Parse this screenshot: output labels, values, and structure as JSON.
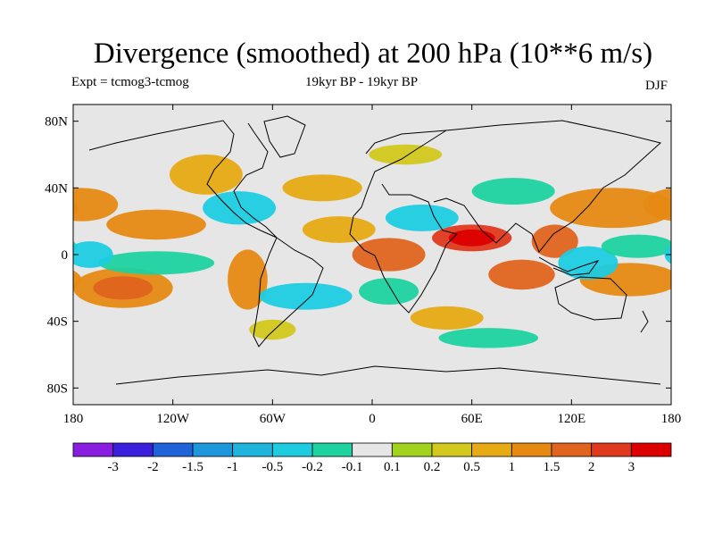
{
  "title": "Divergence (smoothed) at 200 hPa (10**6 m/s)",
  "experiment": "Expt = tcmog3-tcmog",
  "period": "19kyr BP - 19kyr BP",
  "season": "DJF",
  "chart_data": {
    "type": "heatmap",
    "variable": "Divergence (smoothed) at 200 hPa",
    "units": "10**6 m/s",
    "lat_ticks": [
      "80N",
      "40N",
      "0",
      "40S",
      "80S"
    ],
    "lat_values": [
      80,
      40,
      0,
      -40,
      -80
    ],
    "lon_ticks": [
      "180",
      "120W",
      "60W",
      "0",
      "60E",
      "120E",
      "180"
    ],
    "lon_values": [
      -180,
      -120,
      -60,
      0,
      60,
      120,
      180
    ],
    "lat_range": [
      -90,
      90
    ],
    "lon_range": [
      -180,
      180
    ],
    "colorbar": {
      "labels": [
        "-3",
        "-2",
        "-1.5",
        "-1",
        "-0.5",
        "-0.2",
        "-0.1",
        "0.1",
        "0.2",
        "0.5",
        "1",
        "1.5",
        "2",
        "3"
      ],
      "colors": [
        "#8a1ee0",
        "#3a20dc",
        "#1e64d8",
        "#1e96dc",
        "#1eb4dc",
        "#1ecce0",
        "#1ed2a0",
        "#e6e6e6",
        "#a0d21e",
        "#d2c81e",
        "#e6aa14",
        "#e68a14",
        "#e0641e",
        "#e03a1e",
        "#dc0000"
      ]
    },
    "regions": [
      {
        "lon": 60,
        "lat": 10,
        "rx": 24,
        "ry": 8,
        "level": 13
      },
      {
        "lon": 60,
        "lat": 10,
        "rx": 14,
        "ry": 5,
        "level": 14
      },
      {
        "lon": 10,
        "lat": 0,
        "rx": 22,
        "ry": 10,
        "level": 12
      },
      {
        "lon": 90,
        "lat": -12,
        "rx": 20,
        "ry": 9,
        "level": 12
      },
      {
        "lon": 110,
        "lat": 8,
        "rx": 14,
        "ry": 10,
        "level": 12
      },
      {
        "lon": 145,
        "lat": 28,
        "rx": 38,
        "ry": 12,
        "level": 11
      },
      {
        "lon": 155,
        "lat": -15,
        "rx": 30,
        "ry": 10,
        "level": 11
      },
      {
        "lon": -150,
        "lat": -20,
        "rx": 30,
        "ry": 12,
        "level": 11
      },
      {
        "lon": -150,
        "lat": -20,
        "rx": 18,
        "ry": 7,
        "level": 12
      },
      {
        "lon": -75,
        "lat": -15,
        "rx": 12,
        "ry": 18,
        "level": 11
      },
      {
        "lon": -130,
        "lat": 18,
        "rx": 30,
        "ry": 9,
        "level": 11
      },
      {
        "lon": -175,
        "lat": 30,
        "rx": 22,
        "ry": 10,
        "level": 11
      },
      {
        "lon": 45,
        "lat": -38,
        "rx": 22,
        "ry": 7,
        "level": 10
      },
      {
        "lon": -30,
        "lat": 40,
        "rx": 24,
        "ry": 8,
        "level": 10
      },
      {
        "lon": -20,
        "lat": 15,
        "rx": 22,
        "ry": 8,
        "level": 10
      },
      {
        "lon": -100,
        "lat": 48,
        "rx": 22,
        "ry": 12,
        "level": 10
      },
      {
        "lon": 20,
        "lat": 60,
        "rx": 22,
        "ry": 6,
        "level": 9
      },
      {
        "lon": -60,
        "lat": -45,
        "rx": 14,
        "ry": 6,
        "level": 9
      },
      {
        "lon": -80,
        "lat": 28,
        "rx": 22,
        "ry": 10,
        "level": 5
      },
      {
        "lon": -40,
        "lat": -25,
        "rx": 28,
        "ry": 8,
        "level": 5
      },
      {
        "lon": 10,
        "lat": -22,
        "rx": 18,
        "ry": 8,
        "level": 6
      },
      {
        "lon": 30,
        "lat": 22,
        "rx": 22,
        "ry": 8,
        "level": 5
      },
      {
        "lon": 130,
        "lat": -5,
        "rx": 18,
        "ry": 10,
        "level": 5
      },
      {
        "lon": 160,
        "lat": 5,
        "rx": 22,
        "ry": 7,
        "level": 6
      },
      {
        "lon": -130,
        "lat": -5,
        "rx": 35,
        "ry": 7,
        "level": 6
      },
      {
        "lon": -170,
        "lat": 0,
        "rx": 14,
        "ry": 8,
        "level": 5
      },
      {
        "lon": 70,
        "lat": -50,
        "rx": 30,
        "ry": 6,
        "level": 6
      },
      {
        "lon": 85,
        "lat": 38,
        "rx": 25,
        "ry": 8,
        "level": 6
      },
      {
        "lon": -125,
        "lat": -45,
        "rx": 25,
        "ry": 7,
        "level": 7
      },
      {
        "lon": -170,
        "lat": 60,
        "rx": 14,
        "ry": 6,
        "level": 7
      }
    ]
  }
}
